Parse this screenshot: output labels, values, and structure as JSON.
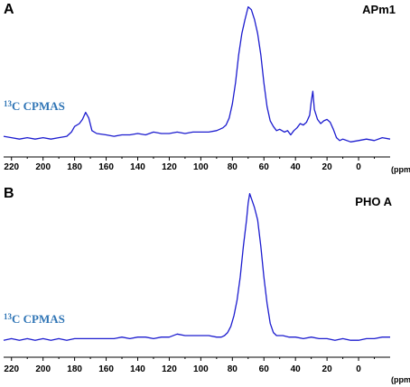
{
  "chart_data": [
    {
      "type": "line",
      "panel": "A",
      "sample": "APm1",
      "method": {
        "sup": "13",
        "text": "C CPMAS"
      },
      "x_unit": "(ppm)",
      "x_axis": {
        "reversed": true,
        "xlim": [
          225,
          -20
        ],
        "ticks": [
          220,
          200,
          180,
          160,
          140,
          120,
          100,
          80,
          60,
          40,
          20,
          0
        ]
      },
      "y_axis": {
        "shown": false,
        "ylim": [
          0,
          1
        ]
      },
      "grid": false,
      "color": "#1c1ccf",
      "series": [
        {
          "points": [
            [
              225,
              0.07
            ],
            [
              220,
              0.06
            ],
            [
              215,
              0.05
            ],
            [
              210,
              0.06
            ],
            [
              205,
              0.05
            ],
            [
              200,
              0.06
            ],
            [
              195,
              0.05
            ],
            [
              190,
              0.06
            ],
            [
              185,
              0.07
            ],
            [
              182,
              0.1
            ],
            [
              180,
              0.14
            ],
            [
              177,
              0.16
            ],
            [
              175,
              0.19
            ],
            [
              173,
              0.24
            ],
            [
              171,
              0.2
            ],
            [
              169,
              0.11
            ],
            [
              166,
              0.09
            ],
            [
              160,
              0.08
            ],
            [
              155,
              0.07
            ],
            [
              150,
              0.08
            ],
            [
              145,
              0.08
            ],
            [
              140,
              0.09
            ],
            [
              135,
              0.08
            ],
            [
              130,
              0.1
            ],
            [
              125,
              0.09
            ],
            [
              120,
              0.09
            ],
            [
              115,
              0.1
            ],
            [
              110,
              0.09
            ],
            [
              105,
              0.1
            ],
            [
              100,
              0.1
            ],
            [
              95,
              0.1
            ],
            [
              90,
              0.11
            ],
            [
              88,
              0.12
            ],
            [
              86,
              0.13
            ],
            [
              84,
              0.15
            ],
            [
              82,
              0.2
            ],
            [
              80,
              0.3
            ],
            [
              78,
              0.45
            ],
            [
              76,
              0.65
            ],
            [
              74,
              0.8
            ],
            [
              72,
              0.9
            ],
            [
              70,
              0.99
            ],
            [
              68,
              0.97
            ],
            [
              66,
              0.9
            ],
            [
              64,
              0.8
            ],
            [
              62,
              0.65
            ],
            [
              60,
              0.45
            ],
            [
              58,
              0.28
            ],
            [
              56,
              0.18
            ],
            [
              54,
              0.14
            ],
            [
              52,
              0.11
            ],
            [
              50,
              0.12
            ],
            [
              47,
              0.1
            ],
            [
              45,
              0.11
            ],
            [
              43,
              0.08
            ],
            [
              41,
              0.11
            ],
            [
              39,
              0.13
            ],
            [
              37,
              0.16
            ],
            [
              35,
              0.15
            ],
            [
              33,
              0.17
            ],
            [
              31,
              0.22
            ],
            [
              30,
              0.32
            ],
            [
              29,
              0.39
            ],
            [
              28,
              0.26
            ],
            [
              26,
              0.19
            ],
            [
              24,
              0.16
            ],
            [
              22,
              0.18
            ],
            [
              20,
              0.19
            ],
            [
              18,
              0.17
            ],
            [
              16,
              0.12
            ],
            [
              14,
              0.06
            ],
            [
              12,
              0.04
            ],
            [
              10,
              0.05
            ],
            [
              5,
              0.03
            ],
            [
              0,
              0.04
            ],
            [
              -5,
              0.05
            ],
            [
              -10,
              0.04
            ],
            [
              -15,
              0.06
            ],
            [
              -20,
              0.05
            ]
          ]
        }
      ]
    },
    {
      "type": "line",
      "panel": "B",
      "sample": "PHO A",
      "method": {
        "sup": "13",
        "text": "C CPMAS"
      },
      "x_unit": "(ppm)",
      "x_axis": {
        "reversed": true,
        "xlim": [
          225,
          -20
        ],
        "ticks": [
          220,
          200,
          180,
          160,
          140,
          120,
          100,
          80,
          60,
          40,
          20,
          0
        ]
      },
      "y_axis": {
        "shown": false,
        "ylim": [
          0,
          1
        ]
      },
      "grid": false,
      "color": "#1c1ccf",
      "series": [
        {
          "points": [
            [
              225,
              0.04
            ],
            [
              220,
              0.05
            ],
            [
              215,
              0.04
            ],
            [
              210,
              0.05
            ],
            [
              205,
              0.04
            ],
            [
              200,
              0.05
            ],
            [
              195,
              0.04
            ],
            [
              190,
              0.05
            ],
            [
              185,
              0.04
            ],
            [
              180,
              0.05
            ],
            [
              175,
              0.05
            ],
            [
              170,
              0.05
            ],
            [
              165,
              0.05
            ],
            [
              160,
              0.05
            ],
            [
              155,
              0.05
            ],
            [
              150,
              0.06
            ],
            [
              145,
              0.05
            ],
            [
              140,
              0.06
            ],
            [
              135,
              0.06
            ],
            [
              130,
              0.05
            ],
            [
              125,
              0.06
            ],
            [
              120,
              0.06
            ],
            [
              115,
              0.08
            ],
            [
              110,
              0.07
            ],
            [
              105,
              0.07
            ],
            [
              100,
              0.07
            ],
            [
              95,
              0.07
            ],
            [
              90,
              0.06
            ],
            [
              87,
              0.06
            ],
            [
              85,
              0.07
            ],
            [
              83,
              0.09
            ],
            [
              81,
              0.13
            ],
            [
              79,
              0.2
            ],
            [
              77,
              0.3
            ],
            [
              75,
              0.45
            ],
            [
              73,
              0.65
            ],
            [
              71,
              0.82
            ],
            [
              70,
              0.93
            ],
            [
              69,
              0.99
            ],
            [
              68,
              0.96
            ],
            [
              66,
              0.9
            ],
            [
              64,
              0.82
            ],
            [
              62,
              0.65
            ],
            [
              60,
              0.45
            ],
            [
              58,
              0.28
            ],
            [
              56,
              0.15
            ],
            [
              54,
              0.09
            ],
            [
              52,
              0.07
            ],
            [
              48,
              0.07
            ],
            [
              44,
              0.06
            ],
            [
              40,
              0.06
            ],
            [
              35,
              0.05
            ],
            [
              30,
              0.06
            ],
            [
              25,
              0.05
            ],
            [
              20,
              0.05
            ],
            [
              15,
              0.04
            ],
            [
              10,
              0.05
            ],
            [
              5,
              0.04
            ],
            [
              0,
              0.04
            ],
            [
              -5,
              0.05
            ],
            [
              -10,
              0.05
            ],
            [
              -15,
              0.06
            ],
            [
              -20,
              0.06
            ]
          ]
        }
      ]
    }
  ]
}
